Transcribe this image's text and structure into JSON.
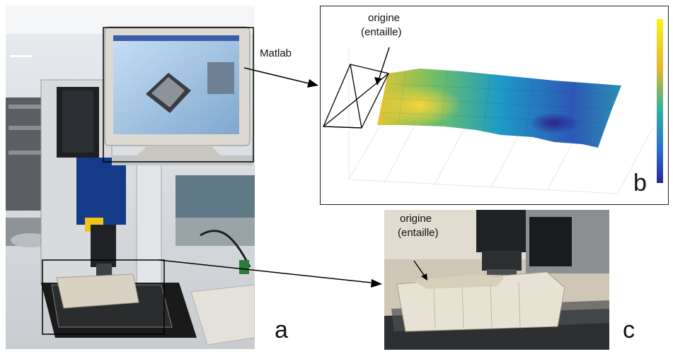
{
  "labels": {
    "matlab": "Matlab",
    "origin_top": "origine",
    "notch_top": "(entaille)",
    "origin_bottom": "origine",
    "notch_bottom": "(entaille)",
    "panel_a": "a",
    "panel_b": "b",
    "panel_c": "c"
  },
  "colors": {
    "surface_high": "#f3e42a",
    "surface_mid": "#2ba7a2",
    "surface_low": "#352c8e",
    "frame": "#000000"
  }
}
